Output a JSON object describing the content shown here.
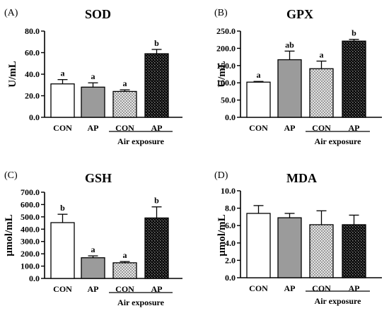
{
  "chart_data": [
    {
      "type": "bar",
      "panel": "(A)",
      "title": "SOD",
      "ylabel": "U/mL",
      "ylim": [
        0,
        80
      ],
      "yticks": [
        "0.0",
        "20.0",
        "40.0",
        "60.0",
        "80.0"
      ],
      "categories": [
        "CON",
        "AP",
        "CON",
        "AP"
      ],
      "group_label": "Air exposure",
      "values": [
        31,
        28,
        24,
        59
      ],
      "errors": [
        4,
        4,
        1.5,
        4
      ],
      "significance": [
        "a",
        "a",
        "a",
        "b"
      ],
      "fills": [
        "white",
        "gray",
        "checker",
        "dark-checker"
      ]
    },
    {
      "type": "bar",
      "panel": "(B)",
      "title": "GPX",
      "ylabel": "U/mL",
      "ylim": [
        0,
        250
      ],
      "yticks": [
        "0.0",
        "50.0",
        "100.0",
        "150.0",
        "200.0",
        "250.0"
      ],
      "categories": [
        "CON",
        "AP",
        "CON",
        "AP"
      ],
      "group_label": "Air exposure",
      "values": [
        102,
        167,
        141,
        221
      ],
      "errors": [
        2,
        25,
        22,
        5
      ],
      "significance": [
        "a",
        "ab",
        "a",
        "b"
      ],
      "fills": [
        "white",
        "gray",
        "checker",
        "dark-checker"
      ]
    },
    {
      "type": "bar",
      "panel": "(C)",
      "title": "GSH",
      "ylabel": "μmol/mL",
      "ylim": [
        0,
        700
      ],
      "yticks": [
        "0.0",
        "100.0",
        "200.0",
        "300.0",
        "400.0",
        "500.0",
        "600.0",
        "700.0"
      ],
      "categories": [
        "CON",
        "AP",
        "CON",
        "AP"
      ],
      "group_label": "Air exposure",
      "values": [
        453,
        168,
        127,
        491
      ],
      "errors": [
        68,
        15,
        10,
        90
      ],
      "significance": [
        "b",
        "a",
        "a",
        "b"
      ],
      "fills": [
        "white",
        "gray",
        "checker",
        "dark-checker"
      ]
    },
    {
      "type": "bar",
      "panel": "(D)",
      "title": "MDA",
      "ylabel": "μmol/mL",
      "ylim": [
        0,
        10
      ],
      "yticks": [
        "0.0",
        "2.0",
        "4.0",
        "6.0",
        "8.0",
        "10.0"
      ],
      "categories": [
        "CON",
        "AP",
        "CON",
        "AP"
      ],
      "group_label": "Air exposure",
      "values": [
        7.4,
        6.9,
        6.1,
        6.1
      ],
      "errors": [
        0.9,
        0.5,
        1.6,
        1.1
      ],
      "significance": [
        "",
        "",
        "",
        ""
      ],
      "fills": [
        "white",
        "gray",
        "checker",
        "dark-checker"
      ]
    }
  ]
}
